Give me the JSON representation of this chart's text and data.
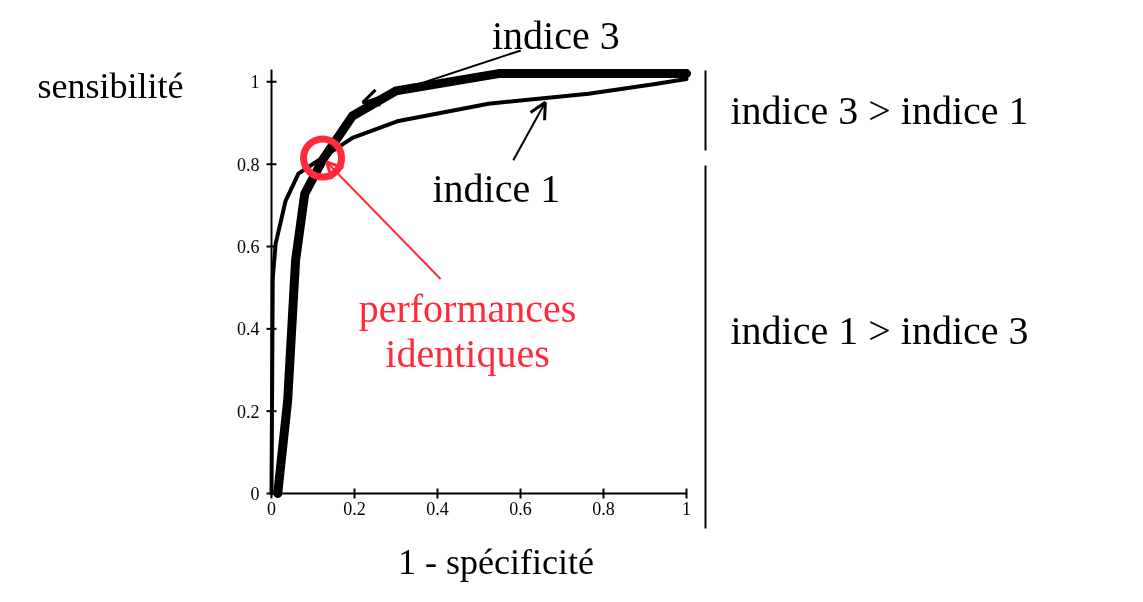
{
  "chart_data": {
    "type": "line",
    "xlabel": "1 - spécificité",
    "ylabel": "sensibilité",
    "xlim": [
      0,
      1
    ],
    "ylim": [
      0,
      1.03
    ],
    "xticks": [
      0,
      0.2,
      0.4,
      0.6,
      0.8,
      1
    ],
    "yticks": [
      0,
      0.2,
      0.4,
      0.6,
      0.8,
      1
    ],
    "grid": false,
    "line_style": "solid",
    "series": [
      {
        "color": "#000000",
        "x": [
          0.015,
          0.039,
          0.058,
          0.08,
          0.123,
          0.195,
          0.3,
          0.547,
          1.0
        ],
        "values": [
          0,
          0.226,
          0.566,
          0.728,
          0.81,
          0.917,
          0.978,
          1.02,
          1.02
        ]
      },
      {
        "color": "#000000",
        "x": [
          0,
          0.003,
          0.01,
          0.034,
          0.065,
          0.123,
          0.195,
          0.306,
          0.523,
          0.764,
          0.925,
          1.0
        ],
        "values": [
          0,
          0.524,
          0.607,
          0.711,
          0.777,
          0.816,
          0.864,
          0.905,
          0.947,
          0.971,
          0.995,
          1.007
        ]
      }
    ],
    "annotations": [
      {
        "text": "indice 3",
        "x": 0.22,
        "y": 0.95
      },
      {
        "text": "indice 1",
        "x": 0.667,
        "y": 0.96
      },
      {
        "text": "performances\nidentiques",
        "x": 0.123,
        "y": 0.815
      },
      "indice 3 > indice 1",
      "indice 1 > indice 3"
    ]
  }
}
